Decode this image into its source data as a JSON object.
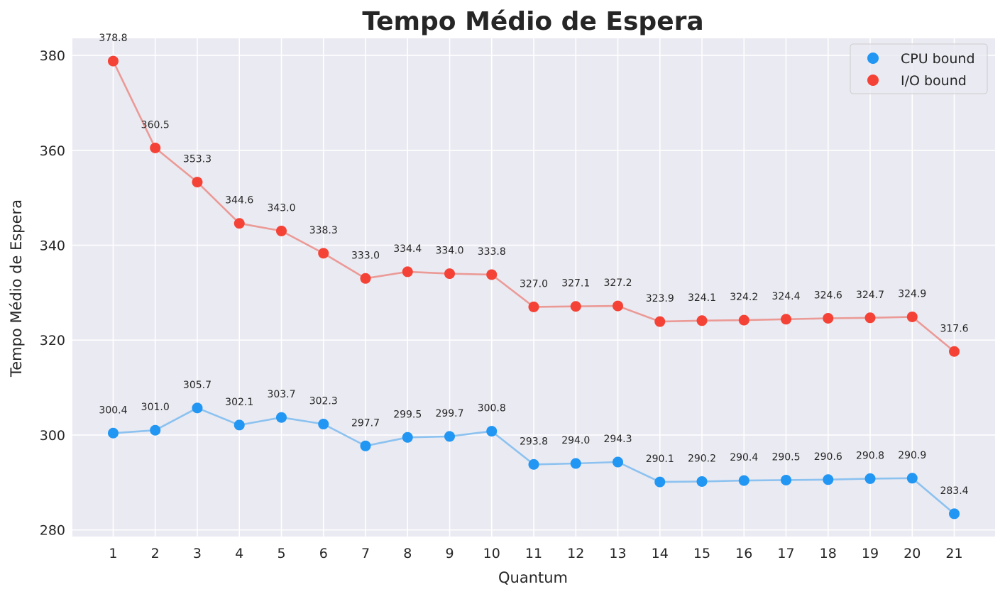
{
  "chart_data": {
    "type": "line",
    "title": "Tempo Médio de Espera",
    "xlabel": "Quantum",
    "ylabel": "Tempo Médio de Espera",
    "x": [
      1,
      2,
      3,
      4,
      5,
      6,
      7,
      8,
      9,
      10,
      11,
      12,
      13,
      14,
      15,
      16,
      17,
      18,
      19,
      20,
      21
    ],
    "x_tick_labels": [
      "1",
      "2",
      "3",
      "4",
      "5",
      "6",
      "7",
      "8",
      "9",
      "10",
      "11",
      "12",
      "13",
      "14",
      "15",
      "16",
      "17",
      "18",
      "19",
      "20",
      "21"
    ],
    "yticks": [
      280,
      300,
      320,
      340,
      360,
      380
    ],
    "ylim": [
      278.6,
      383.6
    ],
    "xlim": [
      0.03,
      21.97
    ],
    "grid": true,
    "legend_position": "top-right",
    "series": [
      {
        "name": "CPU bound",
        "point_color": "#2196f3",
        "line_color": "#8cc2f0",
        "values": [
          300.4,
          301.0,
          305.7,
          302.1,
          303.7,
          302.3,
          297.7,
          299.5,
          299.7,
          300.8,
          293.8,
          294.0,
          294.3,
          290.1,
          290.2,
          290.4,
          290.5,
          290.6,
          290.8,
          290.9,
          283.4
        ],
        "labels": [
          "300.4",
          "301.0",
          "305.7",
          "302.1",
          "303.7",
          "302.3",
          "297.7",
          "299.5",
          "299.7",
          "300.8",
          "293.8",
          "294.0",
          "294.3",
          "290.1",
          "290.2",
          "290.4",
          "290.5",
          "290.6",
          "290.8",
          "290.9",
          "283.4"
        ]
      },
      {
        "name": "I/O bound",
        "point_color": "#f44336",
        "line_color": "#eb9a96",
        "values": [
          378.8,
          360.5,
          353.3,
          344.6,
          343.0,
          338.3,
          333.0,
          334.4,
          334.0,
          333.8,
          327.0,
          327.1,
          327.2,
          323.9,
          324.1,
          324.2,
          324.4,
          324.6,
          324.7,
          324.9,
          317.6
        ],
        "labels": [
          "378.8",
          "360.5",
          "353.3",
          "344.6",
          "343.0",
          "338.3",
          "333.0",
          "334.4",
          "334.0",
          "333.8",
          "327.0",
          "327.1",
          "327.2",
          "323.9",
          "324.1",
          "324.2",
          "324.4",
          "324.6",
          "324.7",
          "324.9",
          "317.6"
        ]
      }
    ]
  },
  "colors": {
    "plot_background": "#eaeaf2",
    "grid": "#ffffff",
    "text": "#262626"
  }
}
